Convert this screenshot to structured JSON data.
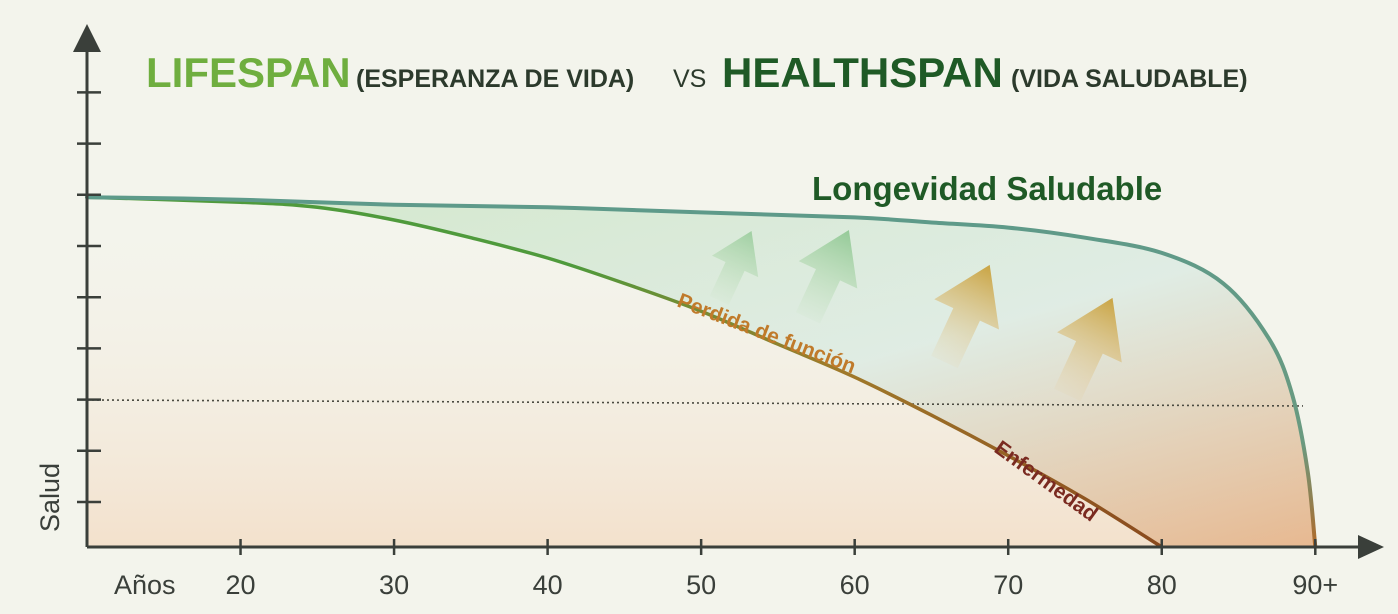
{
  "title": {
    "lifespan": "LIFESPAN",
    "lifespan_sub": "(ESPERANZA DE VIDA)",
    "vs": "VS",
    "healthspan": "HEALTHSPAN",
    "healthspan_sub": "(VIDA SALUDABLE)"
  },
  "labels": {
    "healthy": "Longevidad Saludable",
    "loss": "Perdida de función",
    "disease": "Enfermedad"
  },
  "colors": {
    "lifespan_title": "#6fae3f",
    "healthspan_title": "#1f5a26",
    "sub_title": "#2c3a2c",
    "healthy_curve": "#5d9a8a",
    "normal_curve_green": "#4f9a3c",
    "normal_curve_brown": "#8a4a1e",
    "loss_label": "#c07a2a",
    "disease_label": "#7a2a20",
    "axis": "#3a3f3a",
    "background": "#f3f4ec"
  },
  "chart_data": {
    "type": "line",
    "xlabel": "Años",
    "ylabel": "Salud",
    "x_ticks": [
      "20",
      "30",
      "40",
      "50",
      "60",
      "70",
      "80",
      "90+"
    ],
    "x_tick_values": [
      20,
      30,
      40,
      50,
      60,
      70,
      80,
      90
    ],
    "xlim": [
      10,
      92
    ],
    "ylim": [
      0,
      10
    ],
    "y_tick_count": 9,
    "threshold_y": 2.9,
    "series": [
      {
        "name": "Longevidad Saludable",
        "x": [
          10,
          20,
          30,
          40,
          50,
          60,
          65,
          70,
          75,
          80,
          84,
          87,
          88.5,
          89.5,
          90
        ],
        "y": [
          6.9,
          6.85,
          6.75,
          6.7,
          6.6,
          6.5,
          6.4,
          6.3,
          6.1,
          5.8,
          5.2,
          4.1,
          3.0,
          1.5,
          0
        ]
      },
      {
        "name": "Perdida de función",
        "x": [
          10,
          20,
          25,
          30,
          35,
          40,
          45,
          50,
          55,
          60,
          65,
          70,
          75,
          80
        ],
        "y": [
          6.9,
          6.8,
          6.7,
          6.45,
          6.1,
          5.7,
          5.2,
          4.65,
          4.0,
          3.35,
          2.6,
          1.8,
          0.95,
          0
        ]
      }
    ]
  }
}
